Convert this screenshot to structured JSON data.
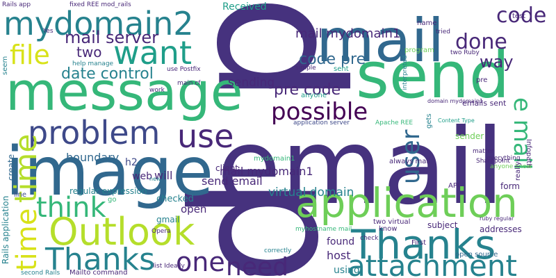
{
  "words": [
    "p",
    "email",
    "p",
    "message",
    "image",
    "send",
    "mail",
    "application",
    "Thanks",
    "attachment",
    "Outlook",
    "Thanks",
    "problem",
    "use",
    "want",
    "mydomain2",
    "file",
    "think",
    "time",
    "time",
    "one",
    "need",
    "possible",
    "code",
    "done",
    "way",
    "mail server",
    "date control",
    "two",
    "code pre",
    "pre code",
    "user",
    "e mail",
    "mail mydomain1",
    "sending",
    "Received",
    "boundary",
    "web",
    "will",
    "h2",
    "regular expression",
    "virtual domain",
    "mail mydomain1",
    "client",
    "send email",
    "open",
    "checked",
    "gmail",
    "host",
    "found",
    "using",
    "subject",
    "addresses",
    "form",
    "sender",
    "application server",
    "always mail",
    "emails sent",
    "domain mydomain1",
    "Content Type",
    "Sharepoint",
    "Infopath",
    "API",
    "tried",
    "test",
    "two Ruby",
    "program",
    "sent",
    "anyone",
    "Rails app",
    "fixed REE mod_rails",
    "Yes",
    "help manage",
    "use Postfix",
    "two virtual",
    "myhostname mail",
    "Apache REE",
    "Mailto command",
    "Opera",
    "open source",
    "ruby regular",
    "matter",
    "everything",
    "anyone know",
    "Rails application",
    "create",
    "mydomain1",
    "seem",
    "line",
    "main cf",
    "work",
    "pre",
    "name",
    "gets",
    "really",
    "First",
    "know",
    "check",
    "second Rails",
    "list Ideally",
    "interpreted",
    "correctly",
    "new",
    "go",
    "simple"
  ]
}
